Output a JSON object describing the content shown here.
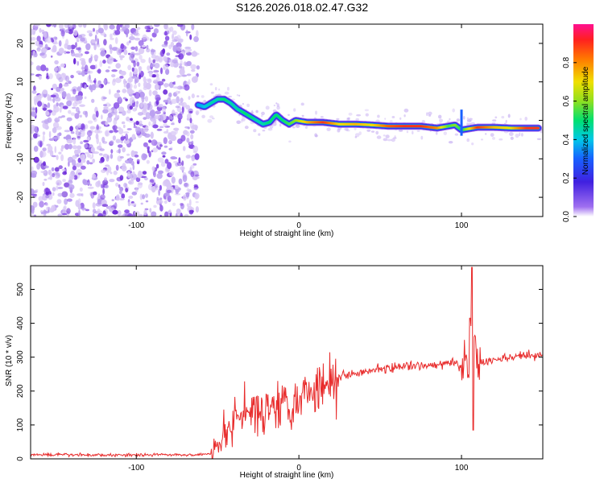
{
  "title": "S126.2026.018.02.47.G32",
  "chart_data": [
    {
      "type": "heatmap",
      "name": "spectrogram",
      "xlabel": "Height of straight line (km)",
      "ylabel": "Frequency (Hz)",
      "xlim": [
        -165,
        150
      ],
      "ylim": [
        -25,
        25
      ],
      "xticks": [
        -100,
        0,
        100
      ],
      "yticks": [
        -20,
        -10,
        0,
        10,
        20
      ],
      "noise_region_x": [
        -165,
        -62
      ],
      "ridge": {
        "x": [
          -62,
          -58,
          -54,
          -50,
          -46,
          -42,
          -38,
          -34,
          -30,
          -26,
          -22,
          -18,
          -14,
          -10,
          -6,
          -2,
          5,
          15,
          25,
          35,
          45,
          55,
          65,
          75,
          85,
          92,
          96,
          100,
          110,
          120,
          130,
          140,
          148
        ],
        "freq": [
          4.0,
          3.5,
          4.5,
          5.5,
          5.5,
          4.5,
          3.0,
          2.0,
          1.0,
          0.0,
          -1.0,
          -0.5,
          1.5,
          0.0,
          -1.0,
          0.0,
          -0.5,
          -0.5,
          -1.0,
          -1.0,
          -1.2,
          -1.5,
          -1.5,
          -1.5,
          -2.0,
          -1.5,
          -1.2,
          -2.5,
          -1.8,
          -1.8,
          -2.0,
          -2.0,
          -2.0
        ],
        "amplitude": [
          0.35,
          0.4,
          0.45,
          0.45,
          0.5,
          0.45,
          0.45,
          0.5,
          0.5,
          0.45,
          0.45,
          0.5,
          0.5,
          0.5,
          0.55,
          0.6,
          0.75,
          0.9,
          0.7,
          0.75,
          0.7,
          0.85,
          0.9,
          0.9,
          0.8,
          0.55,
          0.6,
          0.5,
          0.9,
          0.75,
          0.7,
          0.9,
          0.9
        ]
      },
      "colorbar": {
        "label": "Normalized spectral amplitude",
        "ticks": [
          "0.0",
          "0.2",
          "0.4",
          "0.6",
          "0.8"
        ],
        "range": [
          0,
          1
        ]
      }
    },
    {
      "type": "line",
      "name": "snr",
      "xlabel": "Height of straight line (km)",
      "ylabel": "SNR (10 * v/v)",
      "xlim": [
        -165,
        150
      ],
      "ylim": [
        0,
        570
      ],
      "xticks": [
        -100,
        0,
        100
      ],
      "yticks": [
        0,
        100,
        200,
        300,
        400,
        500
      ],
      "color": "#e82c2c",
      "series": [
        {
          "name": "SNR",
          "x": [
            -165,
            -140,
            -120,
            -100,
            -80,
            -65,
            -55,
            -50,
            -45,
            -40,
            -35,
            -30,
            -25,
            -20,
            -15,
            -10,
            -5,
            0,
            5,
            10,
            15,
            20,
            25,
            30,
            40,
            50,
            60,
            70,
            80,
            90,
            95,
            100,
            103,
            105,
            106,
            107,
            108,
            110,
            115,
            120,
            130,
            140,
            150
          ],
          "values": [
            12,
            12,
            11,
            12,
            12,
            12,
            14,
            40,
            80,
            110,
            130,
            120,
            140,
            150,
            160,
            170,
            175,
            180,
            200,
            210,
            220,
            230,
            240,
            250,
            260,
            265,
            270,
            272,
            275,
            280,
            285,
            270,
            300,
            200,
            420,
            150,
            350,
            280,
            285,
            290,
            300,
            305,
            310
          ]
        }
      ]
    }
  ]
}
